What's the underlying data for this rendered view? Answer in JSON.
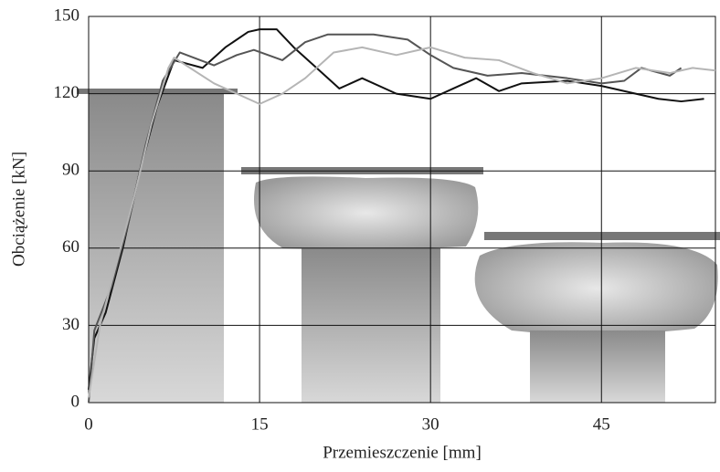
{
  "chart_data": {
    "type": "line",
    "x_label": "Przemieszczenie [mm]",
    "y_label": "Obciążenie [kN]",
    "xlim": [
      0,
      55
    ],
    "ylim": [
      0,
      150
    ],
    "xticks": [
      0,
      15,
      30,
      45
    ],
    "yticks": [
      0,
      30,
      60,
      90,
      120,
      150
    ],
    "grid": true,
    "series": [
      {
        "color": "#111111",
        "x": [
          0,
          0.5,
          1.5,
          3,
          4.5,
          6,
          7.5,
          10,
          12,
          14,
          15,
          16.5,
          18,
          20,
          22,
          24,
          27,
          30,
          32,
          34,
          36,
          38,
          42,
          45,
          48,
          50,
          52,
          54
        ],
        "values": [
          5,
          25,
          35,
          60,
          90,
          115,
          133,
          130,
          138,
          144,
          145,
          145,
          138,
          130,
          122,
          126,
          120,
          118,
          122,
          126,
          121,
          124,
          125,
          123,
          120,
          118,
          117,
          118
        ]
      },
      {
        "color": "#555555",
        "x": [
          0,
          0.5,
          2,
          3.5,
          5,
          6.5,
          8,
          11,
          13,
          14.5,
          17,
          19,
          21,
          25,
          28,
          30,
          32,
          35,
          38,
          42,
          45,
          47,
          48.5,
          51,
          52
        ],
        "values": [
          0,
          28,
          45,
          70,
          100,
          125,
          136,
          131,
          135,
          137,
          133,
          140,
          143,
          143,
          141,
          135,
          130,
          127,
          128,
          126,
          124,
          125,
          130,
          127,
          130
        ]
      },
      {
        "color": "#b5b5b5",
        "x": [
          0,
          1,
          2.5,
          4,
          5.5,
          7,
          7.5,
          11,
          13,
          15,
          17,
          19,
          21.5,
          24,
          27,
          30,
          33,
          36,
          39,
          42,
          45,
          48,
          51,
          53,
          55
        ],
        "values": [
          2,
          30,
          55,
          80,
          108,
          130,
          134,
          124,
          120,
          116,
          120,
          126,
          136,
          138,
          135,
          138,
          134,
          133,
          128,
          124,
          126,
          130,
          128,
          130,
          129
        ]
      }
    ]
  }
}
